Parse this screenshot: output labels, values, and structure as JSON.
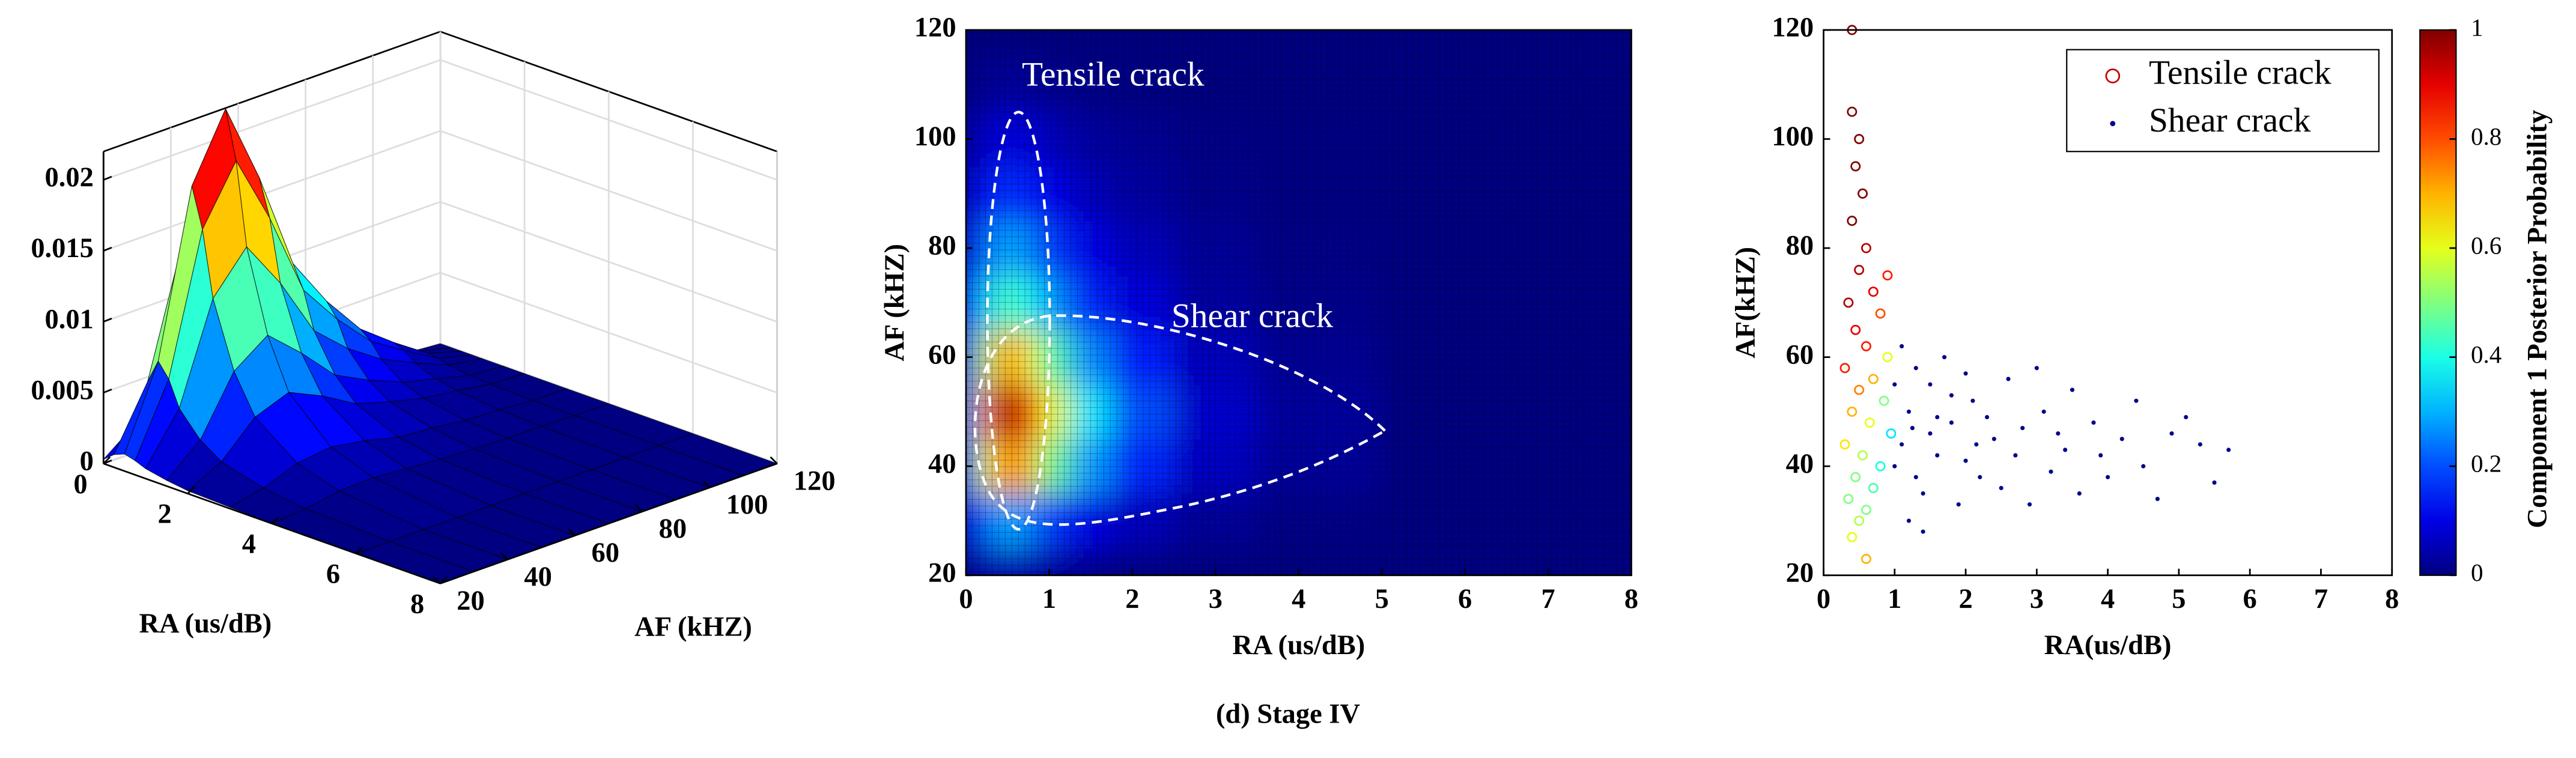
{
  "caption": "(d) Stage IV",
  "chart_data": [
    {
      "type": "surface",
      "xlabel": "RA (us/dB)",
      "ylabel": "AF (kHZ)",
      "x": [
        0,
        0.25,
        0.5,
        0.75,
        1,
        1.5,
        2,
        3,
        4,
        6,
        8
      ],
      "y": [
        20,
        30,
        40,
        50,
        60,
        70,
        80,
        90,
        100,
        110,
        120
      ],
      "z": [
        [
          0.0003,
          0.0009,
          0.0012,
          0.001,
          0.0007,
          0.0004,
          0.0002,
          0.0001,
          0,
          0,
          0
        ],
        [
          0.0021,
          0.0052,
          0.0069,
          0.0059,
          0.0041,
          0.0024,
          0.0014,
          0.0006,
          0.0002,
          0,
          0
        ],
        [
          0.0055,
          0.0138,
          0.0184,
          0.0156,
          0.011,
          0.0064,
          0.0037,
          0.0015,
          0.0006,
          0,
          0
        ],
        [
          0.0069,
          0.0173,
          0.023,
          0.0196,
          0.0138,
          0.0081,
          0.0046,
          0.0018,
          0.0007,
          0,
          0
        ],
        [
          0.0052,
          0.0129,
          0.0173,
          0.0147,
          0.0104,
          0.006,
          0.0035,
          0.0014,
          0.0005,
          0,
          0
        ],
        [
          0.0031,
          0.0078,
          0.0104,
          0.0088,
          0.0062,
          0.0036,
          0.0021,
          0.0008,
          0.0003,
          0,
          0
        ],
        [
          0.0021,
          0.0052,
          0.0069,
          0.0059,
          0.0041,
          0.0024,
          0.0014,
          0.0006,
          0.0002,
          0,
          0
        ],
        [
          0.0012,
          0.0031,
          0.0041,
          0.0035,
          0.0025,
          0.0014,
          0.0008,
          0.0003,
          0.0001,
          0,
          0
        ],
        [
          0.0007,
          0.0017,
          0.0023,
          0.002,
          0.0014,
          0.0008,
          0.0005,
          0.0002,
          0.0001,
          0,
          0
        ],
        [
          0.0002,
          0.0005,
          0.0007,
          0.0006,
          0.0004,
          0.0002,
          0.0001,
          0,
          0,
          0,
          0
        ],
        [
          0,
          0,
          0,
          0,
          0,
          0,
          0,
          0,
          0,
          0,
          0
        ]
      ],
      "xlim": [
        0,
        8
      ],
      "ylim": [
        20,
        120
      ],
      "zlim": [
        0,
        0.022
      ],
      "xticks": [
        0,
        2,
        4,
        6,
        8
      ],
      "yticks": [
        20,
        40,
        60,
        80,
        100,
        120
      ],
      "zticks": [
        0,
        0.005,
        0.01,
        0.015,
        0.02
      ],
      "colormap": "jet",
      "grid": true
    },
    {
      "type": "heatmap",
      "xlabel": "RA (us/dB)",
      "ylabel": "AF (kHZ)",
      "x": [
        0,
        0.25,
        0.5,
        0.75,
        1,
        1.5,
        2,
        3,
        4,
        6,
        8
      ],
      "y": [
        20,
        30,
        40,
        50,
        60,
        70,
        80,
        90,
        100,
        110,
        120
      ],
      "z": [
        [
          0.0003,
          0.0009,
          0.0012,
          0.001,
          0.0007,
          0.0004,
          0.0002,
          0.0001,
          0,
          0,
          0
        ],
        [
          0.0021,
          0.0052,
          0.0069,
          0.0059,
          0.0041,
          0.0024,
          0.0014,
          0.0006,
          0.0002,
          0,
          0
        ],
        [
          0.0055,
          0.0138,
          0.0184,
          0.0156,
          0.011,
          0.0064,
          0.0037,
          0.0015,
          0.0006,
          0,
          0
        ],
        [
          0.0069,
          0.0173,
          0.023,
          0.0196,
          0.0138,
          0.0081,
          0.0046,
          0.0018,
          0.0007,
          0,
          0
        ],
        [
          0.0052,
          0.0129,
          0.0173,
          0.0147,
          0.0104,
          0.006,
          0.0035,
          0.0014,
          0.0005,
          0,
          0
        ],
        [
          0.0031,
          0.0078,
          0.0104,
          0.0088,
          0.0062,
          0.0036,
          0.0021,
          0.0008,
          0.0003,
          0,
          0
        ],
        [
          0.0021,
          0.0052,
          0.0069,
          0.0059,
          0.0041,
          0.0024,
          0.0014,
          0.0006,
          0.0002,
          0,
          0
        ],
        [
          0.0012,
          0.0031,
          0.0041,
          0.0035,
          0.0025,
          0.0014,
          0.0008,
          0.0003,
          0.0001,
          0,
          0
        ],
        [
          0.0007,
          0.0017,
          0.0023,
          0.002,
          0.0014,
          0.0008,
          0.0005,
          0.0002,
          0.0001,
          0,
          0
        ],
        [
          0.0002,
          0.0005,
          0.0007,
          0.0006,
          0.0004,
          0.0002,
          0.0001,
          0,
          0,
          0,
          0
        ],
        [
          0,
          0,
          0,
          0,
          0,
          0,
          0,
          0,
          0,
          0,
          0
        ]
      ],
      "clim": [
        0,
        0.023
      ],
      "colormap": "jet",
      "xlim": [
        0,
        8
      ],
      "ylim": [
        20,
        120
      ],
      "xticks": [
        0,
        1,
        2,
        3,
        4,
        5,
        6,
        7,
        8
      ],
      "yticks": [
        20,
        40,
        60,
        80,
        100,
        120
      ],
      "annotations": [
        {
          "text": "Tensile crack"
        },
        {
          "text": "Shear crack"
        }
      ]
    },
    {
      "type": "scatter",
      "xlabel": "RA(us/dB)",
      "ylabel": "AF(kHZ)",
      "xlim": [
        0,
        8
      ],
      "ylim": [
        20,
        120
      ],
      "xticks": [
        0,
        1,
        2,
        3,
        4,
        5,
        6,
        7,
        8
      ],
      "yticks": [
        20,
        40,
        60,
        80,
        100,
        120
      ],
      "legend": "upper right",
      "series": [
        {
          "name": "Tensile crack",
          "color": "#c00000",
          "marker": "circle",
          "x": [
            0.4,
            0.4,
            0.5,
            0.45,
            0.55,
            0.4,
            0.6,
            0.5,
            0.7,
            0.35,
            0.8,
            0.45,
            0.6,
            0.9,
            0.3,
            0.7,
            0.5,
            0.85,
            0.4,
            0.65,
            0.95,
            0.3,
            0.55,
            0.8,
            0.45,
            0.7,
            0.35,
            0.6,
            0.5,
            0.4,
            0.6,
            0.9
          ],
          "y": [
            120,
            105,
            100,
            95,
            90,
            85,
            80,
            76,
            72,
            70,
            68,
            65,
            62,
            60,
            58,
            56,
            54,
            52,
            50,
            48,
            46,
            44,
            42,
            40,
            38,
            36,
            34,
            32,
            30,
            27,
            23,
            75
          ],
          "probability": [
            1,
            1,
            1,
            1,
            1,
            1,
            0.95,
            0.95,
            0.9,
            0.95,
            0.8,
            0.9,
            0.85,
            0.6,
            0.85,
            0.7,
            0.75,
            0.5,
            0.7,
            0.6,
            0.35,
            0.65,
            0.55,
            0.4,
            0.5,
            0.45,
            0.5,
            0.5,
            0.55,
            0.6,
            0.7,
            0.85
          ]
        },
        {
          "name": "Shear crack",
          "color": "#00008b",
          "marker": "dot",
          "x": [
            1.1,
            1.3,
            1.5,
            1.2,
            1.8,
            2.1,
            2.4,
            1.6,
            1.0,
            2.8,
            3.1,
            3.4,
            2.2,
            1.4,
            1.9,
            3.8,
            4.2,
            4.5,
            4.9,
            5.3,
            5.7,
            2.6,
            3.0,
            1.7,
            2.0,
            2.5,
            3.2,
            3.6,
            4.0,
            1.2,
            1.5,
            1.1,
            1.3,
            2.3,
            2.7,
            3.3,
            4.4,
            5.5,
            1.8,
            1.0,
            1.6,
            2.9,
            3.9,
            4.7,
            1.4,
            2.0,
            1.25,
            2.15,
            3.5,
            5.1
          ],
          "y": [
            62,
            58,
            55,
            50,
            48,
            52,
            45,
            42,
            40,
            47,
            50,
            43,
            38,
            35,
            33,
            48,
            45,
            40,
            46,
            44,
            43,
            56,
            58,
            60,
            41,
            36,
            39,
            35,
            38,
            30,
            46,
            44,
            38,
            49,
            42,
            46,
            52,
            37,
            53,
            55,
            49,
            33,
            42,
            34,
            28,
            57,
            47,
            44,
            54,
            49
          ]
        }
      ],
      "colorbar": {
        "label": "Component 1 Posterior Probability",
        "lim": [
          0,
          1
        ],
        "ticks": [
          0,
          0.2,
          0.4,
          0.6,
          0.8,
          1
        ],
        "colormap": "jet"
      }
    }
  ]
}
